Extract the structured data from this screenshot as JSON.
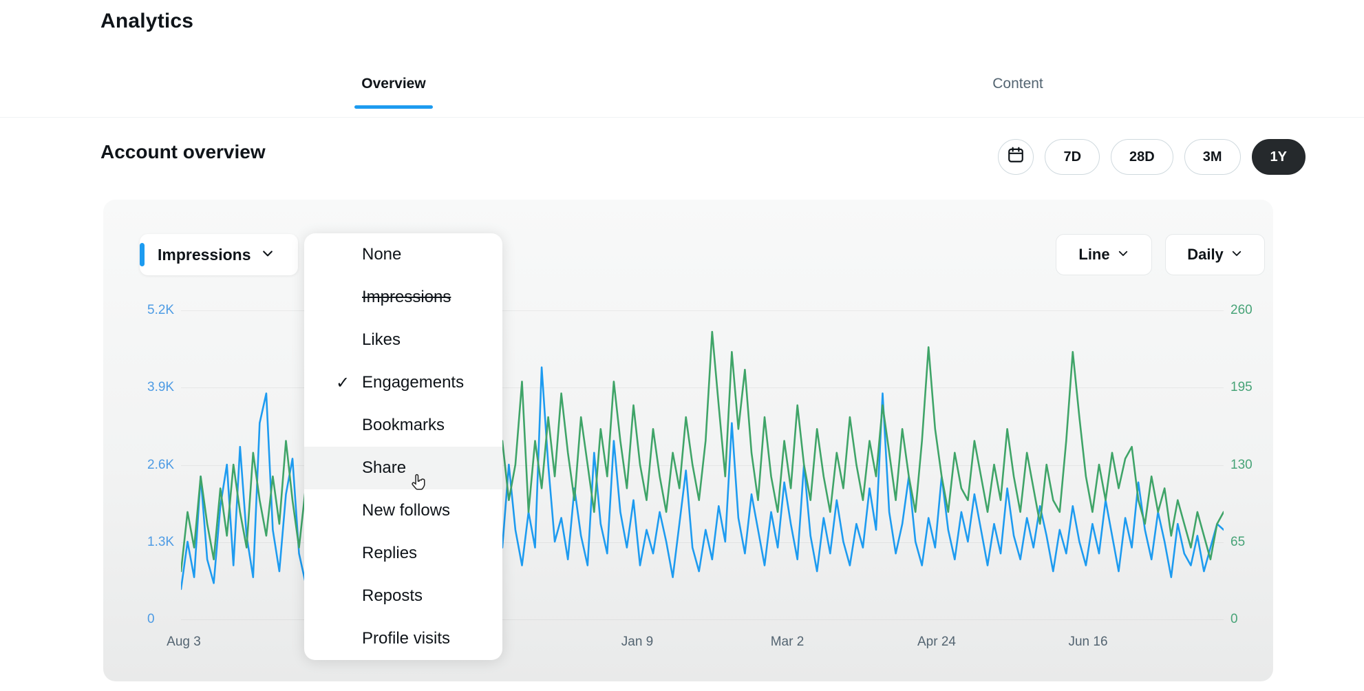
{
  "page": {
    "title": "Analytics"
  },
  "tabs": [
    {
      "label": "Overview",
      "active": true
    },
    {
      "label": "Content",
      "active": false
    }
  ],
  "section": {
    "title": "Account overview"
  },
  "range_buttons": [
    {
      "label": "7D",
      "active": false
    },
    {
      "label": "28D",
      "active": false
    },
    {
      "label": "3M",
      "active": false
    },
    {
      "label": "1Y",
      "active": true
    }
  ],
  "chart_controls": {
    "metric": "Impressions",
    "chart_type": "Line",
    "granularity": "Daily"
  },
  "metric_menu": {
    "items": [
      {
        "label": "None"
      },
      {
        "label": "Impressions",
        "strikethrough": true
      },
      {
        "label": "Likes"
      },
      {
        "label": "Engagements",
        "checked": true
      },
      {
        "label": "Bookmarks"
      },
      {
        "label": "Share",
        "hovered": true
      },
      {
        "label": "New follows"
      },
      {
        "label": "Replies"
      },
      {
        "label": "Reposts"
      },
      {
        "label": "Profile visits"
      }
    ]
  },
  "icons": {
    "check": "✓"
  },
  "colors": {
    "accent_blue": "#1d9bf0",
    "line_green": "#3fa468",
    "text_dark": "#0f1419",
    "text_gray": "#536471",
    "pill_border": "#cfd9de",
    "active_pill_bg": "#25292c"
  },
  "chart_data": {
    "type": "line",
    "title": "Account overview",
    "x_tick_labels": [
      "Aug 3",
      "Jan 9",
      "Mar 2",
      "Apr 24",
      "Jun 16"
    ],
    "left_axis": {
      "label": "Impressions",
      "ticks": [
        "5.2K",
        "3.9K",
        "2.6K",
        "1.3K",
        "0"
      ],
      "max": 5200,
      "color": "#4d9be4"
    },
    "right_axis": {
      "label": "Engagements",
      "ticks": [
        "260",
        "195",
        "130",
        "65",
        "0"
      ],
      "max": 260,
      "color": "#47a377"
    },
    "grid": true,
    "legend_position": "none",
    "series": [
      {
        "name": "Impressions",
        "axis": "left",
        "color": "#1d9bf0",
        "values": [
          500,
          1300,
          700,
          2400,
          1000,
          600,
          1900,
          2600,
          900,
          2900,
          1400,
          700,
          3300,
          3800,
          1500,
          800,
          2100,
          2700,
          1100,
          600,
          900,
          1500,
          700,
          1200,
          1800,
          800,
          1400,
          1000,
          1600,
          700,
          1300,
          900,
          1700,
          1100,
          800,
          1500,
          1200,
          900,
          1400,
          1000,
          700,
          1600,
          1100,
          1900,
          800,
          1300,
          2200,
          1000,
          1700,
          1200,
          2600,
          1500,
          900,
          1800,
          1200,
          4240,
          2600,
          1300,
          1700,
          1000,
          2200,
          1400,
          900,
          2800,
          1600,
          1100,
          3000,
          1800,
          1200,
          2000,
          900,
          1500,
          1100,
          1800,
          1300,
          700,
          1600,
          2500,
          1200,
          800,
          1500,
          1000,
          1900,
          1300,
          3300,
          1700,
          1100,
          2100,
          1500,
          900,
          1800,
          1200,
          2300,
          1600,
          1000,
          2600,
          1400,
          800,
          1700,
          1100,
          2000,
          1300,
          900,
          1600,
          1200,
          2200,
          1500,
          3800,
          1800,
          1100,
          1600,
          2400,
          1300,
          900,
          1700,
          1200,
          2400,
          1500,
          1000,
          1800,
          1300,
          2100,
          1500,
          900,
          1600,
          1100,
          2200,
          1400,
          1000,
          1700,
          1200,
          1900,
          1400,
          800,
          1500,
          1100,
          1900,
          1300,
          900,
          1600,
          1100,
          2000,
          1400,
          800,
          1700,
          1200,
          2300,
          1500,
          1000,
          1800,
          1300,
          700,
          1600,
          1100,
          900,
          1400,
          800,
          1200,
          1600,
          1500
        ]
      },
      {
        "name": "Engagements",
        "axis": "right",
        "color": "#3fa468",
        "values": [
          40,
          90,
          60,
          120,
          80,
          50,
          110,
          70,
          130,
          90,
          60,
          140,
          100,
          70,
          120,
          80,
          150,
          100,
          60,
          110,
          70,
          120,
          90,
          60,
          130,
          100,
          70,
          110,
          80,
          140,
          90,
          60,
          120,
          100,
          70,
          130,
          90,
          110,
          80,
          60,
          100,
          140,
          90,
          180,
          120,
          80,
          160,
          110,
          90,
          150,
          100,
          130,
          200,
          90,
          150,
          110,
          170,
          120,
          190,
          140,
          100,
          170,
          130,
          90,
          160,
          120,
          200,
          150,
          110,
          180,
          130,
          100,
          160,
          120,
          90,
          140,
          110,
          170,
          130,
          100,
          150,
          242,
          180,
          120,
          225,
          160,
          210,
          140,
          100,
          170,
          120,
          90,
          150,
          110,
          180,
          130,
          100,
          160,
          120,
          90,
          140,
          110,
          170,
          130,
          100,
          150,
          120,
          180,
          140,
          100,
          160,
          120,
          90,
          150,
          229,
          160,
          120,
          90,
          140,
          110,
          100,
          150,
          120,
          90,
          130,
          100,
          160,
          120,
          90,
          140,
          110,
          80,
          130,
          100,
          90,
          150,
          225,
          170,
          120,
          90,
          130,
          100,
          140,
          110,
          135,
          145,
          100,
          80,
          120,
          90,
          110,
          70,
          100,
          80,
          60,
          90,
          70,
          50,
          80,
          90
        ]
      }
    ]
  }
}
